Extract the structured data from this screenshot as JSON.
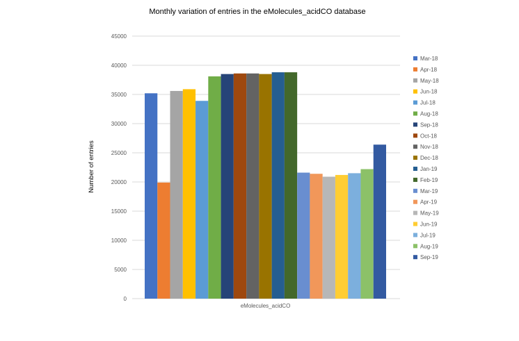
{
  "chart_data": {
    "type": "bar",
    "title": "Monthly variation of entries in the eMolecules_acidCO database",
    "ylabel": "Number of entries",
    "xlabel": "",
    "categories": [
      "eMolecules_acidCO"
    ],
    "ylim": [
      0,
      45000
    ],
    "yticks": [
      0,
      5000,
      10000,
      15000,
      20000,
      25000,
      30000,
      35000,
      40000,
      45000
    ],
    "grid": true,
    "legend_position": "right",
    "series": [
      {
        "name": "Mar-18",
        "values": [
          35200
        ],
        "color": "#4472C4"
      },
      {
        "name": "Apr-18",
        "values": [
          19900
        ],
        "color": "#ED7D31"
      },
      {
        "name": "May-18",
        "values": [
          35600
        ],
        "color": "#A5A5A5"
      },
      {
        "name": "Jun-18",
        "values": [
          35900
        ],
        "color": "#FFC000"
      },
      {
        "name": "Jul-18",
        "values": [
          33900
        ],
        "color": "#5B9BD5"
      },
      {
        "name": "Aug-18",
        "values": [
          38100
        ],
        "color": "#70AD47"
      },
      {
        "name": "Sep-18",
        "values": [
          38500
        ],
        "color": "#264478"
      },
      {
        "name": "Oct-18",
        "values": [
          38600
        ],
        "color": "#9E480E"
      },
      {
        "name": "Nov-18",
        "values": [
          38600
        ],
        "color": "#636363"
      },
      {
        "name": "Dec-18",
        "values": [
          38500
        ],
        "color": "#997300"
      },
      {
        "name": "Jan-19",
        "values": [
          38800
        ],
        "color": "#255E91"
      },
      {
        "name": "Feb-19",
        "values": [
          38800
        ],
        "color": "#43682B"
      },
      {
        "name": "Mar-19",
        "values": [
          21600
        ],
        "color": "#698ED0"
      },
      {
        "name": "Apr-19",
        "values": [
          21400
        ],
        "color": "#F1975A"
      },
      {
        "name": "May-19",
        "values": [
          20900
        ],
        "color": "#B7B7B7"
      },
      {
        "name": "Jun-19",
        "values": [
          21200
        ],
        "color": "#FFCD33"
      },
      {
        "name": "Jul-19",
        "values": [
          21500
        ],
        "color": "#7CAFDD"
      },
      {
        "name": "Aug-19",
        "values": [
          22200
        ],
        "color": "#8CC168"
      },
      {
        "name": "Sep-19",
        "values": [
          26400
        ],
        "color": "#335AA1"
      }
    ]
  },
  "colors": {
    "gridline": "#D9D9D9",
    "axis_text": "#595959",
    "title_text": "#000000"
  }
}
